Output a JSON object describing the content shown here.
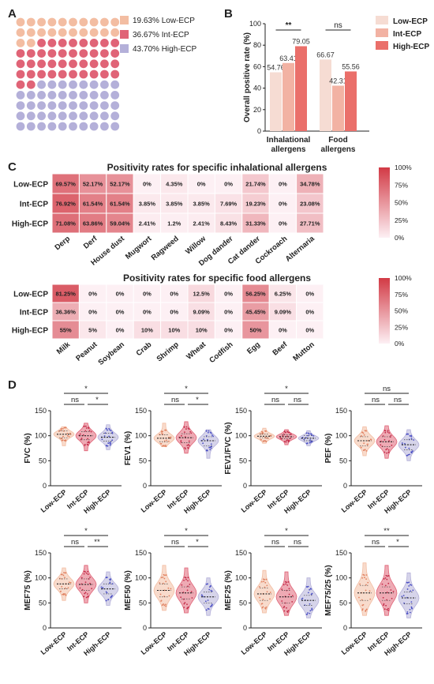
{
  "panels": [
    "A",
    "B",
    "C",
    "D"
  ],
  "colors": {
    "low": "#f3bda2",
    "int": "#e06477",
    "high": "#b4b0d9",
    "barLow": "#f6dcd3",
    "barInt": "#f2b2a3",
    "barHigh": "#ea6f6a",
    "heatMax": "#d23a45"
  },
  "chart_data": [
    {
      "panel": "A",
      "type": "waffle",
      "legend": [
        "19.63% Low-ECP",
        "36.67% Int-ECP",
        "43.70% High-ECP"
      ],
      "values": [
        19.63,
        36.67,
        43.7
      ],
      "grid": {
        "rows": 11,
        "cols": 10
      }
    },
    {
      "panel": "B",
      "type": "bar",
      "ylabel": "Overall positive rate (%)",
      "ylim": [
        0,
        100
      ],
      "yticks": [
        0,
        20,
        40,
        60,
        80,
        100
      ],
      "categories": [
        "Inhalational allergens",
        "Food allergens"
      ],
      "series": [
        {
          "name": "Low-ECP",
          "values": [
            54.76,
            66.67
          ]
        },
        {
          "name": "Int-ECP",
          "values": [
            63.41,
            42.31
          ]
        },
        {
          "name": "High-ECP",
          "values": [
            79.05,
            55.56
          ]
        }
      ],
      "value_labels": [
        [
          "54.76",
          "63.41",
          "79.05"
        ],
        [
          "66.67",
          "42.31",
          "55.56"
        ]
      ],
      "significance": [
        "**",
        "ns"
      ]
    },
    {
      "panel": "C",
      "type": "heatmap",
      "title": "Positivity rates for specific inhalational allergens",
      "rows": [
        "Low-ECP",
        "Int-ECP",
        "High-ECP"
      ],
      "cols": [
        "Derp",
        "Derf",
        "House dust",
        "Mugwort",
        "Ragweed",
        "Willow",
        "Dog dander",
        "Cat dander",
        "Cockroach",
        "Alternaria"
      ],
      "values": [
        [
          69.57,
          52.17,
          52.17,
          0,
          4.35,
          0,
          0,
          21.74,
          0,
          34.78
        ],
        [
          76.92,
          61.54,
          61.54,
          3.85,
          3.85,
          3.85,
          7.69,
          19.23,
          0,
          23.08
        ],
        [
          71.08,
          63.86,
          59.04,
          2.41,
          1.2,
          2.41,
          8.43,
          31.33,
          0,
          27.71
        ]
      ],
      "labels": [
        [
          "69.57%",
          "52.17%",
          "52.17%",
          "0%",
          "4.35%",
          "0%",
          "0%",
          "21.74%",
          "0%",
          "34.78%"
        ],
        [
          "76.92%",
          "61.54%",
          "61.54%",
          "3.85%",
          "3.85%",
          "3.85%",
          "7.69%",
          "19.23%",
          "0%",
          "23.08%"
        ],
        [
          "71.08%",
          "63.86%",
          "59.04%",
          "2.41%",
          "1.2%",
          "2.41%",
          "8.43%",
          "31.33%",
          "0%",
          "27.71%"
        ]
      ],
      "colorbar_ticks": [
        "100%",
        "75%",
        "50%",
        "25%",
        "0%"
      ],
      "range": [
        0,
        100
      ]
    },
    {
      "panel": "C",
      "type": "heatmap",
      "title": "Positivity rates for specific food allergens",
      "rows": [
        "Low-ECP",
        "Int-ECP",
        "High-ECP"
      ],
      "cols": [
        "Milk",
        "Peanut",
        "Soybean",
        "Crab",
        "Shrimp",
        "Wheat",
        "Codfish",
        "Egg",
        "Beef",
        "Mutton"
      ],
      "values": [
        [
          81.25,
          0,
          0,
          0,
          0,
          12.5,
          0,
          56.25,
          6.25,
          0
        ],
        [
          36.36,
          0,
          0,
          0,
          0,
          9.09,
          0,
          45.45,
          9.09,
          0
        ],
        [
          55,
          5,
          0,
          10,
          10,
          10,
          0,
          50,
          0,
          0
        ]
      ],
      "labels": [
        [
          "81.25%",
          "0%",
          "0%",
          "0%",
          "0%",
          "12.5%",
          "0%",
          "56.25%",
          "6.25%",
          "0%"
        ],
        [
          "36.36%",
          "0%",
          "0%",
          "0%",
          "0%",
          "9.09%",
          "0%",
          "45.45%",
          "9.09%",
          "0%"
        ],
        [
          "55%",
          "5%",
          "0%",
          "10%",
          "10%",
          "10%",
          "0%",
          "50%",
          "0%",
          "0%"
        ]
      ],
      "colorbar_ticks": [
        "100%",
        "75%",
        "50%",
        "25%",
        "0%"
      ],
      "range": [
        0,
        100
      ]
    },
    {
      "panel": "D",
      "type": "violin",
      "groups": [
        "Low-ECP",
        "Int-ECP",
        "High-ECP"
      ],
      "plots": [
        {
          "ylabel": "FVC (%)",
          "ylim": [
            0,
            150
          ],
          "yticks": [
            "0",
            "50",
            "100",
            "150"
          ],
          "medians": [
            103,
            100,
            97
          ],
          "q1": [
            96,
            92,
            89
          ],
          "q3": [
            110,
            108,
            105
          ],
          "spread": [
            [
              80,
              118
            ],
            [
              70,
              125
            ],
            [
              72,
              122
            ]
          ],
          "sig": {
            "top": "*",
            "left": "ns",
            "right": "*"
          }
        },
        {
          "ylabel": "FEV1 (%)",
          "ylim": [
            0,
            150
          ],
          "yticks": [
            "0",
            "50",
            "100",
            "150"
          ],
          "medians": [
            95,
            96,
            90
          ],
          "q1": [
            88,
            86,
            80
          ],
          "q3": [
            102,
            104,
            98
          ],
          "spread": [
            [
              78,
              125
            ],
            [
              65,
              128
            ],
            [
              55,
              112
            ]
          ],
          "sig": {
            "top": "*",
            "left": "ns",
            "right": "*"
          }
        },
        {
          "ylabel": "FEV1/FVC (%)",
          "ylim": [
            0,
            150
          ],
          "yticks": [
            "0",
            "50",
            "100",
            "150"
          ],
          "medians": [
            99,
            98,
            95
          ],
          "q1": [
            96,
            94,
            90
          ],
          "q3": [
            103,
            102,
            100
          ],
          "spread": [
            [
              85,
              115
            ],
            [
              82,
              112
            ],
            [
              80,
              110
            ]
          ],
          "sig": {
            "top": "*",
            "left": "ns",
            "right": "ns"
          }
        },
        {
          "ylabel": "PEF (%)",
          "ylim": [
            0,
            150
          ],
          "yticks": [
            "0",
            "50",
            "100",
            "150"
          ],
          "medians": [
            90,
            88,
            82
          ],
          "q1": [
            80,
            78,
            72
          ],
          "q3": [
            98,
            98,
            92
          ],
          "spread": [
            [
              60,
              118
            ],
            [
              55,
              120
            ],
            [
              50,
              112
            ]
          ],
          "sig": {
            "top": "ns",
            "left": "ns",
            "right": "ns"
          }
        },
        {
          "ylabel": "MEF75 (%)",
          "ylim": [
            0,
            150
          ],
          "yticks": [
            "0",
            "50",
            "100",
            "150"
          ],
          "medians": [
            88,
            87,
            78
          ],
          "q1": [
            78,
            75,
            68
          ],
          "q3": [
            98,
            98,
            88
          ],
          "spread": [
            [
              55,
              120
            ],
            [
              50,
              125
            ],
            [
              45,
              112
            ]
          ],
          "sig": {
            "top": "*",
            "left": "ns",
            "right": "**"
          }
        },
        {
          "ylabel": "MEF50 (%)",
          "ylim": [
            0,
            150
          ],
          "yticks": [
            "0",
            "50",
            "100",
            "150"
          ],
          "medians": [
            75,
            70,
            62
          ],
          "q1": [
            62,
            58,
            50
          ],
          "q3": [
            88,
            82,
            72
          ],
          "spread": [
            [
              35,
              125
            ],
            [
              30,
              120
            ],
            [
              25,
              100
            ]
          ],
          "sig": {
            "top": "*",
            "left": "ns",
            "right": "*"
          }
        },
        {
          "ylabel": "MEF25 (%)",
          "ylim": [
            0,
            150
          ],
          "yticks": [
            "0",
            "50",
            "100",
            "150"
          ],
          "medians": [
            68,
            62,
            55
          ],
          "q1": [
            55,
            50,
            45
          ],
          "q3": [
            80,
            75,
            65
          ],
          "spread": [
            [
              30,
              115
            ],
            [
              25,
              112
            ],
            [
              20,
              100
            ]
          ],
          "sig": {
            "top": "*",
            "left": "ns",
            "right": "ns"
          }
        },
        {
          "ylabel": "MEF75/25 (%)",
          "ylim": [
            0,
            150
          ],
          "yticks": [
            "0",
            "50",
            "100",
            "150"
          ],
          "medians": [
            70,
            70,
            60
          ],
          "q1": [
            55,
            55,
            48
          ],
          "q3": [
            85,
            82,
            72
          ],
          "spread": [
            [
              25,
              130
            ],
            [
              25,
              125
            ],
            [
              20,
              110
            ]
          ],
          "sig": {
            "top": "**",
            "left": "ns",
            "right": "*"
          }
        }
      ]
    }
  ]
}
